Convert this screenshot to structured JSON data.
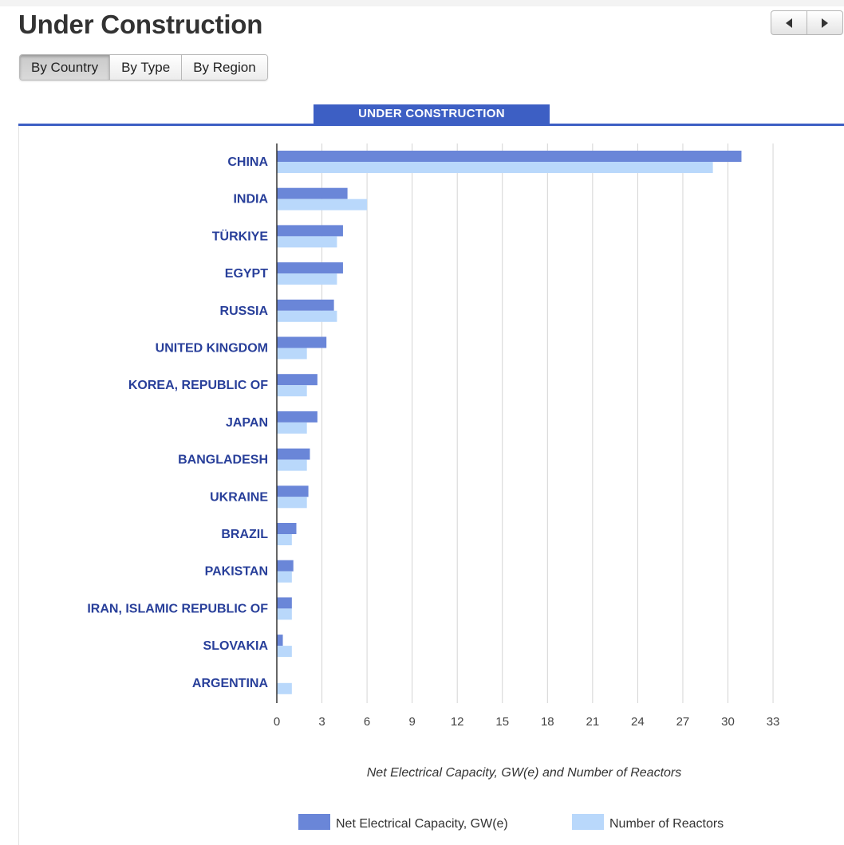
{
  "page": {
    "title": "Under Construction"
  },
  "tabs": [
    {
      "label": "By Country",
      "active": true
    },
    {
      "label": "By Type",
      "active": false
    },
    {
      "label": "By Region",
      "active": false
    }
  ],
  "pager": {
    "prev_icon": "triangle-left-icon",
    "next_icon": "triangle-right-icon"
  },
  "colors": {
    "accent": "#3d5fc4",
    "capacity": "#6a86d8",
    "reactors": "#b9d8fb",
    "label": "#283f9a"
  },
  "chart_data": {
    "type": "bar",
    "orientation": "horizontal",
    "title": "UNDER CONSTRUCTION",
    "xlabel": "Net Electrical Capacity, GW(e) and Number of Reactors",
    "ylabel": "",
    "xlim": [
      0,
      33
    ],
    "xticks": [
      0,
      3,
      6,
      9,
      12,
      15,
      18,
      21,
      24,
      27,
      30,
      33
    ],
    "grid": true,
    "legend_position": "bottom",
    "categories": [
      "CHINA",
      "INDIA",
      "TÜRKIYE",
      "EGYPT",
      "RUSSIA",
      "UNITED KINGDOM",
      "KOREA, REPUBLIC OF",
      "JAPAN",
      "BANGLADESH",
      "UKRAINE",
      "BRAZIL",
      "PAKISTAN",
      "IRAN, ISLAMIC REPUBLIC OF",
      "SLOVAKIA",
      "ARGENTINA"
    ],
    "series": [
      {
        "name": "Net Electrical Capacity, GW(e)",
        "values": [
          30.9,
          4.7,
          4.4,
          4.4,
          3.8,
          3.3,
          2.7,
          2.7,
          2.2,
          2.1,
          1.3,
          1.1,
          1.0,
          0.4,
          0.0
        ]
      },
      {
        "name": "Number of Reactors",
        "values": [
          29,
          6,
          4,
          4,
          4,
          2,
          2,
          2,
          2,
          2,
          1,
          1,
          1,
          1,
          1
        ]
      }
    ]
  }
}
